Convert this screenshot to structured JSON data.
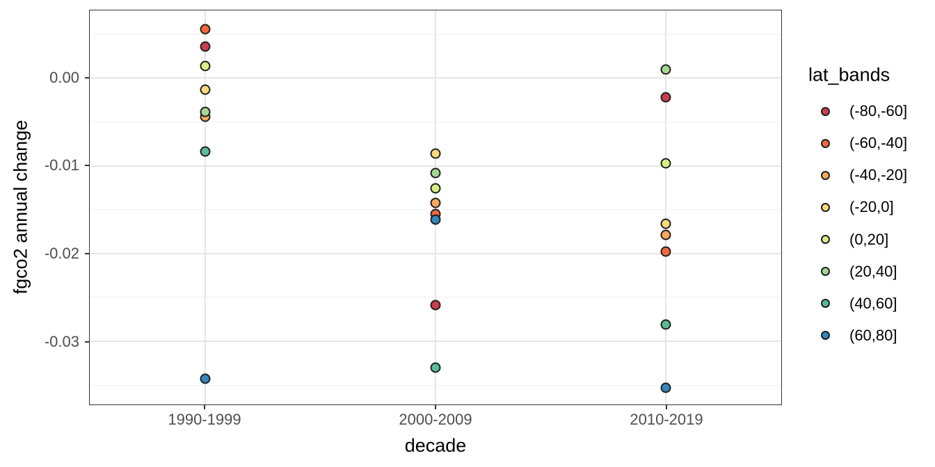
{
  "style": {
    "background": "#ffffff",
    "panel_border_color": "#333333",
    "grid_major_color": "#e6e6e6",
    "grid_minor_color": "#f0f0f0",
    "tick_label_color": "#4d4d4d",
    "axis_title_color": "#000000",
    "point_outline_color": "#1f1f1f"
  },
  "chart_data": {
    "type": "scatter",
    "title": "",
    "xlabel": "decade",
    "ylabel": "fgco2 annual change",
    "categories": [
      "1990-1999",
      "2000-2009",
      "2010-2019"
    ],
    "ylim": [
      -0.0372,
      0.0077
    ],
    "yticks": {
      "values": [
        0.0,
        -0.01,
        -0.02,
        -0.03
      ],
      "labels": [
        "0.00",
        "-0.01",
        "-0.02",
        "-0.03"
      ]
    },
    "yminor": [
      0.005,
      -0.005,
      -0.015,
      -0.025,
      -0.035
    ],
    "grid": true,
    "legend": {
      "title": "lat_bands",
      "position": "right"
    },
    "series": [
      {
        "name": "(-80,-60]",
        "color": "#ca3e4e",
        "values": [
          0.0036,
          -0.0259,
          -0.0022
        ]
      },
      {
        "name": "(-60,-40]",
        "color": "#f2693e",
        "values": [
          0.0056,
          -0.0155,
          -0.0198
        ]
      },
      {
        "name": "(-40,-20]",
        "color": "#f9a95c",
        "values": [
          -0.0044,
          -0.0142,
          -0.0179
        ]
      },
      {
        "name": "(-20,0]",
        "color": "#fbda7c",
        "values": [
          -0.0013,
          -0.0086,
          -0.0166
        ]
      },
      {
        "name": "(0,20]",
        "color": "#d7ee83",
        "values": [
          0.0014,
          -0.0126,
          -0.0097
        ]
      },
      {
        "name": "(20,40]",
        "color": "#a5d695",
        "values": [
          -0.0039,
          -0.0108,
          0.001
        ]
      },
      {
        "name": "(40,60]",
        "color": "#58bd92",
        "values": [
          -0.0084,
          -0.033,
          -0.0281
        ]
      },
      {
        "name": "(60,80]",
        "color": "#3387bc",
        "values": [
          -0.0343,
          -0.0161,
          -0.0353
        ]
      }
    ]
  }
}
